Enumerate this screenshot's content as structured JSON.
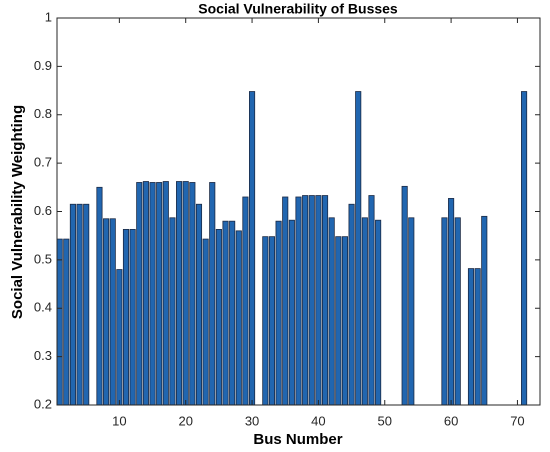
{
  "chart_data": {
    "type": "bar",
    "title": "Social Vulnerability of Busses",
    "x_label": "Bus Number",
    "y_label": "Social Vulnerability Weighting",
    "x": [
      1,
      2,
      3,
      4,
      5,
      6,
      7,
      8,
      9,
      10,
      11,
      12,
      13,
      14,
      15,
      16,
      17,
      18,
      19,
      20,
      21,
      22,
      23,
      24,
      25,
      26,
      27,
      28,
      29,
      30,
      31,
      32,
      33,
      34,
      35,
      36,
      37,
      38,
      39,
      40,
      41,
      42,
      43,
      44,
      45,
      46,
      47,
      48,
      49,
      50,
      51,
      52,
      53,
      54,
      55,
      56,
      57,
      58,
      59,
      60,
      61,
      62,
      63,
      64,
      65,
      66,
      67,
      68,
      69,
      70,
      71,
      72
    ],
    "values": [
      0.543,
      0.543,
      0.615,
      0.615,
      0.615,
      null,
      0.65,
      0.585,
      0.585,
      0.48,
      0.563,
      0.563,
      0.66,
      0.662,
      0.66,
      0.66,
      0.662,
      0.587,
      0.662,
      0.662,
      0.66,
      0.615,
      0.543,
      0.66,
      0.563,
      0.58,
      0.58,
      0.56,
      0.63,
      0.848,
      null,
      0.548,
      0.548,
      0.58,
      0.63,
      0.582,
      0.63,
      0.633,
      0.633,
      0.633,
      0.633,
      0.587,
      0.548,
      0.548,
      0.615,
      0.848,
      0.587,
      0.633,
      0.582,
      null,
      null,
      null,
      0.652,
      0.587,
      null,
      null,
      null,
      null,
      0.587,
      0.627,
      0.587,
      null,
      0.482,
      0.482,
      0.59,
      null,
      null,
      null,
      null,
      null,
      0.848,
      null
    ],
    "color": "#2166b0",
    "xlim": [
      0.6,
      73.4
    ],
    "xticks": [
      10,
      20,
      30,
      40,
      50,
      60,
      70
    ],
    "ylim": [
      0.2,
      1
    ],
    "yticks": [
      0.2,
      0.3,
      0.4,
      0.5,
      0.6,
      0.7,
      0.8,
      0.9,
      1
    ],
    "grid": false
  }
}
